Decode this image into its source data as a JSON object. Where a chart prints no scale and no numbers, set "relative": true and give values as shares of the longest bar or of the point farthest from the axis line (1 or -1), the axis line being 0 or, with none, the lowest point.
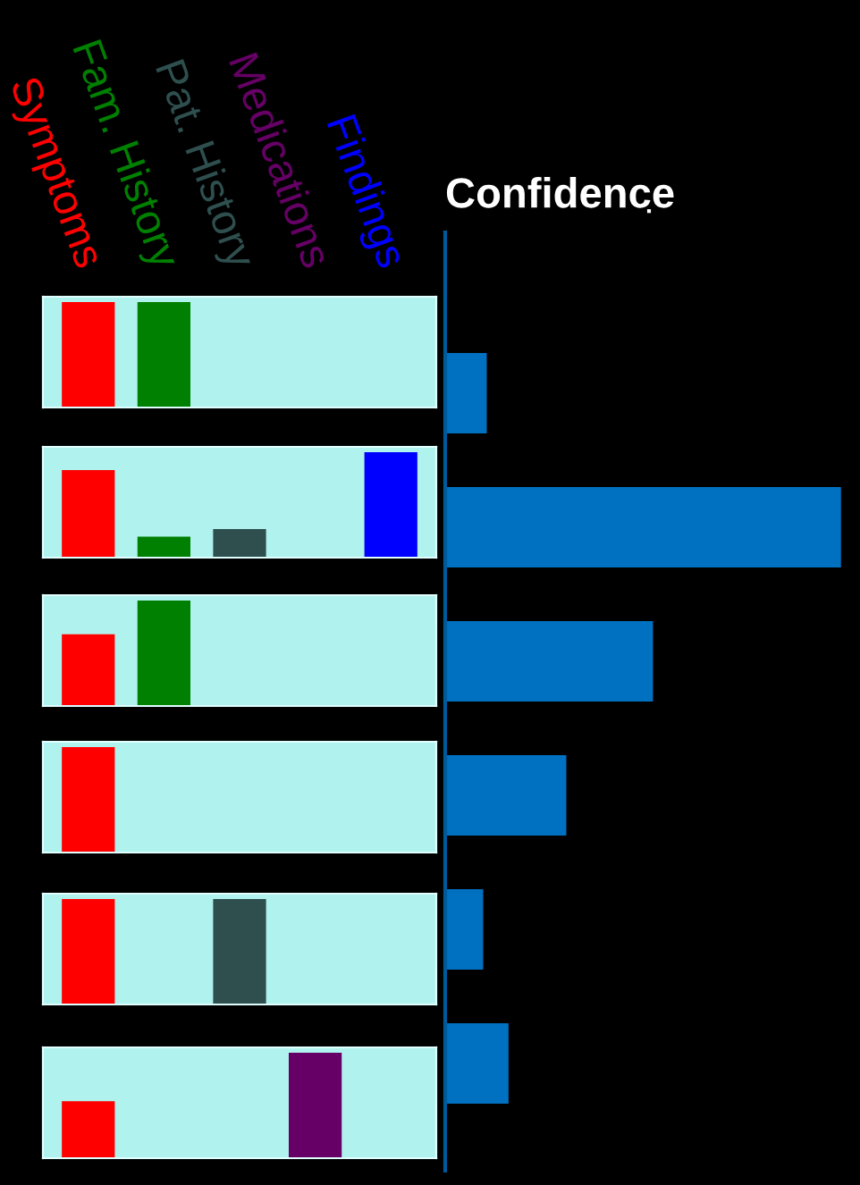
{
  "chart_data": [
    {
      "type": "bar",
      "relative": true,
      "categories": [
        "Symptoms",
        "Fam. History",
        "Pat. History",
        "Medications",
        "Findings"
      ],
      "values": [
        1,
        1,
        null,
        null,
        null
      ],
      "colors": [
        "#ff0000",
        "#008000",
        "#2f4f4f",
        "#660066",
        "#0000ff"
      ],
      "tick_labels": "x"
    },
    {
      "type": "bar",
      "relative": true,
      "categories": [
        null,
        null,
        null,
        null,
        null
      ],
      "values": [
        0.83,
        0.2,
        0.27,
        null,
        1
      ],
      "colors": [
        "#ff0000",
        "#008000",
        "#2f4f4f",
        "#660066",
        "#0000ff"
      ],
      "tick_labels": false
    },
    {
      "type": "bar",
      "relative": true,
      "categories": [
        null,
        null,
        null,
        null,
        null
      ],
      "values": [
        0.68,
        1,
        null,
        null,
        null
      ],
      "colors": [
        "#ff0000",
        "#008000",
        "#2f4f4f",
        "#660066",
        "#0000ff"
      ],
      "tick_labels": false
    },
    {
      "type": "bar",
      "relative": true,
      "categories": [
        null,
        null,
        null,
        null,
        null
      ],
      "values": [
        1,
        null,
        null,
        null,
        null
      ],
      "colors": [
        "#ff0000",
        "#008000",
        "#2f4f4f",
        "#660066",
        "#0000ff"
      ],
      "tick_labels": false
    },
    {
      "type": "bar",
      "relative": true,
      "categories": [
        null,
        null,
        null,
        null,
        null
      ],
      "values": [
        1,
        null,
        1,
        null,
        null
      ],
      "colors": [
        "#ff0000",
        "#008000",
        "#2f4f4f",
        "#660066",
        "#0000ff"
      ],
      "tick_labels": false
    },
    {
      "type": "bar",
      "relative": true,
      "categories": [
        null,
        null,
        null,
        null,
        null
      ],
      "values": [
        0.54,
        null,
        null,
        1,
        null
      ],
      "colors": [
        "#ff0000",
        "#008000",
        "#2f4f4f",
        "#660066",
        "#0000ff"
      ],
      "tick_labels": false
    },
    {
      "type": "bar",
      "orientation": "horizontal",
      "relative": true,
      "title": "Confidence",
      "categories": [
        null,
        null,
        null,
        null,
        null,
        null
      ],
      "values": [
        0.105,
        1,
        0.525,
        0.306,
        0.096,
        0.16
      ],
      "colors": [
        "#0070c0",
        "#0070c0",
        "#0070c0",
        "#0070c0",
        "#0070c0",
        "#0070c0"
      ],
      "tick_labels": false
    }
  ]
}
